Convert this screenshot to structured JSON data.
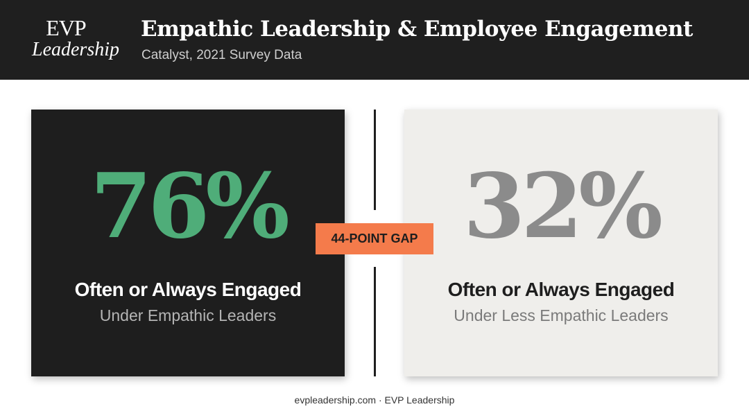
{
  "header": {
    "logo": {
      "line1": "EVP",
      "line2": "Leadership"
    },
    "title": "Empathic Leadership & Employee Engagement",
    "subtitle": "Catalyst, 2021 Survey Data"
  },
  "cards": [
    {
      "stat": "76%",
      "heading": "Often or Always Engaged",
      "subheading": "Under Empathic Leaders"
    },
    {
      "stat": "32%",
      "heading": "Often or Always Engaged",
      "subheading": "Under Less Empathic Leaders"
    }
  ],
  "gap_label": "44-POINT GAP",
  "footer": "evpleadership.com · EVP Leadership"
}
